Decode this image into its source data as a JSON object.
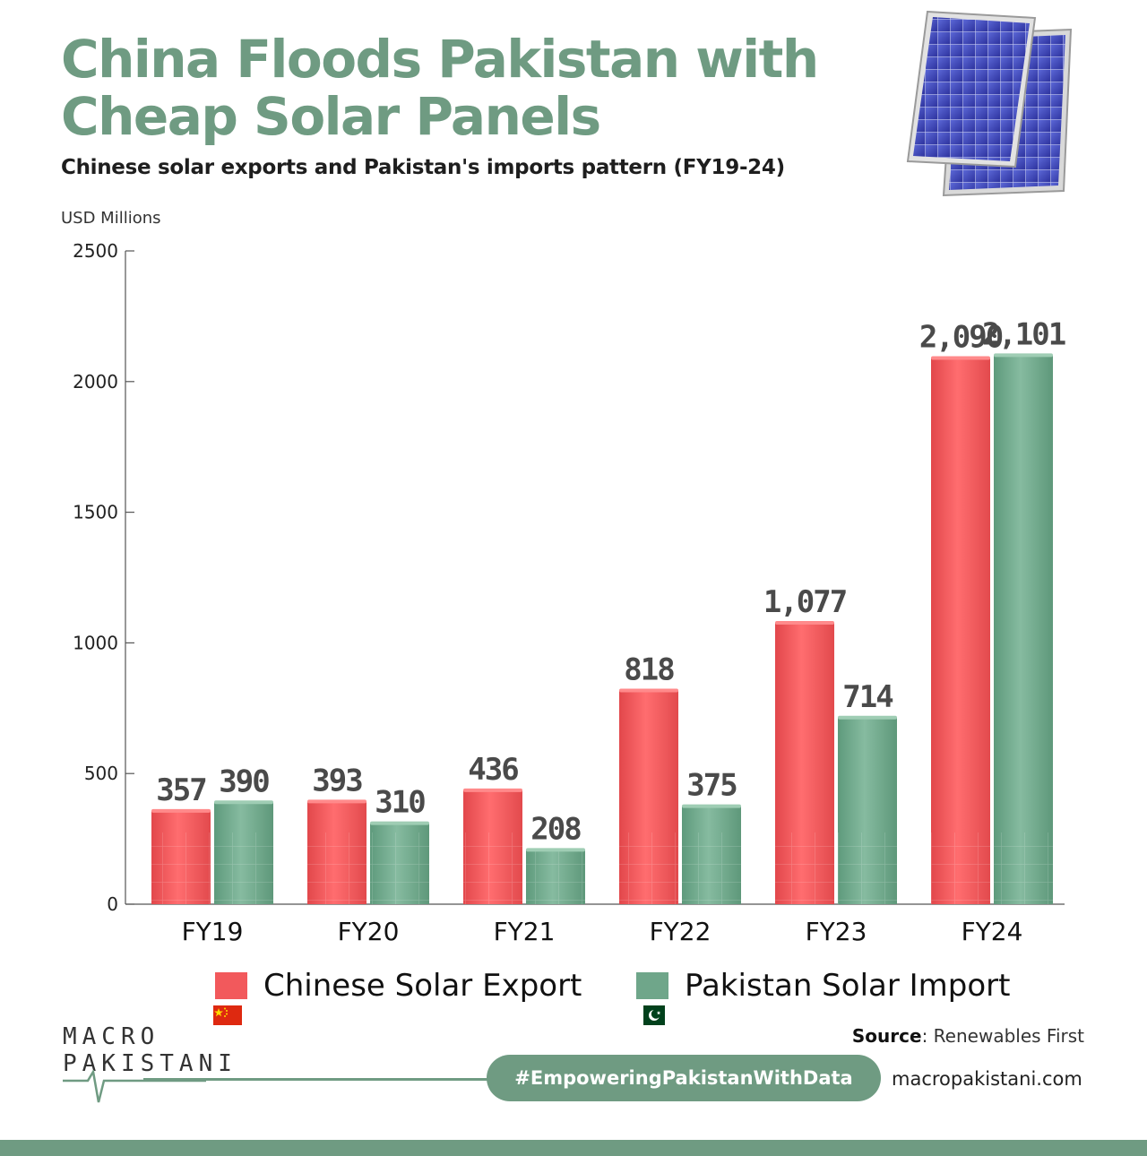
{
  "colors": {
    "brand_green": "#6f9b82",
    "chinese_bar": "#f2595c",
    "pakistan_bar": "#6fa68a"
  },
  "header": {
    "title": "China Floods Pakistan with Cheap Solar Panels",
    "subtitle": "Chinese solar exports and Pakistan's imports pattern (FY19-24)",
    "image_icon": "solar-panel-illustration"
  },
  "chart_data": {
    "type": "bar",
    "ylabel": "USD Millions",
    "ylim": [
      0,
      2500
    ],
    "yticks": [
      0,
      500,
      1000,
      1500,
      2000,
      2500
    ],
    "categories": [
      "FY19",
      "FY20",
      "FY21",
      "FY22",
      "FY23",
      "FY24"
    ],
    "series": [
      {
        "name": "Chinese Solar Export",
        "values": [
          357,
          393,
          436,
          818,
          1077,
          2090
        ],
        "labels": [
          "357",
          "393",
          "436",
          "818",
          "1,077",
          "2,090"
        ]
      },
      {
        "name": "Pakistan Solar Import",
        "values": [
          390,
          310,
          208,
          375,
          714,
          2101
        ],
        "labels": [
          "390",
          "310",
          "208",
          "375",
          "714",
          "2,101"
        ]
      }
    ],
    "legend_position": "bottom",
    "grid": false
  },
  "legend": {
    "chinese_label": "Chinese Solar Export",
    "pakistan_label": "Pakistan Solar Import",
    "chinese_flag": "china-flag-icon",
    "pakistan_flag": "pakistan-flag-icon"
  },
  "footer": {
    "logo_line1": "MACRO",
    "logo_line2": "PAKISTANI",
    "source_label": "Source",
    "source_value": ": Renewables First",
    "hashtag": "#EmpoweringPakistanWithData",
    "website": "macropakistani.com"
  }
}
